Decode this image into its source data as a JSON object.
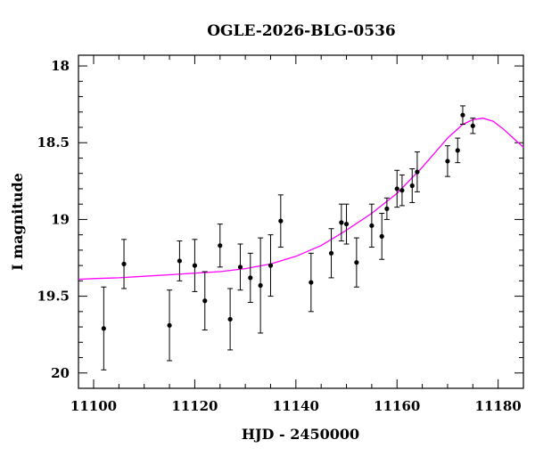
{
  "chart_data": {
    "type": "scatter",
    "title": "OGLE-2026-BLG-0536",
    "xlabel": "HJD - 2450000",
    "ylabel": "I magnitude",
    "xlim": [
      11097,
      11185
    ],
    "ylim": [
      20.1,
      17.93
    ],
    "y_inverted": true,
    "grid": false,
    "x_ticks": [
      11100,
      11120,
      11140,
      11160,
      11180
    ],
    "y_ticks": [
      18,
      18.5,
      19,
      19.5,
      20
    ],
    "x_tick_labels": [
      "11100",
      "11120",
      "11140",
      "11160",
      "11180"
    ],
    "y_tick_labels": [
      "18",
      "18.5",
      "19",
      "19.5",
      "20"
    ],
    "points": [
      {
        "x": 11102,
        "y": 19.71,
        "err": 0.27
      },
      {
        "x": 11106,
        "y": 19.29,
        "err": 0.16
      },
      {
        "x": 11115,
        "y": 19.69,
        "err": 0.23
      },
      {
        "x": 11117,
        "y": 19.27,
        "err": 0.13
      },
      {
        "x": 11120,
        "y": 19.3,
        "err": 0.17
      },
      {
        "x": 11122,
        "y": 19.53,
        "err": 0.19
      },
      {
        "x": 11125,
        "y": 19.17,
        "err": 0.14
      },
      {
        "x": 11127,
        "y": 19.65,
        "err": 0.2
      },
      {
        "x": 11129,
        "y": 19.31,
        "err": 0.15
      },
      {
        "x": 11131,
        "y": 19.38,
        "err": 0.16
      },
      {
        "x": 11133,
        "y": 19.43,
        "err": 0.31
      },
      {
        "x": 11135,
        "y": 19.3,
        "err": 0.2
      },
      {
        "x": 11137,
        "y": 19.01,
        "err": 0.17
      },
      {
        "x": 11143,
        "y": 19.41,
        "err": 0.19
      },
      {
        "x": 11147,
        "y": 19.22,
        "err": 0.16
      },
      {
        "x": 11149,
        "y": 19.02,
        "err": 0.12
      },
      {
        "x": 11150,
        "y": 19.03,
        "err": 0.13
      },
      {
        "x": 11152,
        "y": 19.28,
        "err": 0.16
      },
      {
        "x": 11155,
        "y": 19.04,
        "err": 0.14
      },
      {
        "x": 11157,
        "y": 19.11,
        "err": 0.15
      },
      {
        "x": 11158,
        "y": 18.93,
        "err": 0.07
      },
      {
        "x": 11160,
        "y": 18.8,
        "err": 0.12
      },
      {
        "x": 11161,
        "y": 18.81,
        "err": 0.1
      },
      {
        "x": 11163,
        "y": 18.78,
        "err": 0.11
      },
      {
        "x": 11164,
        "y": 18.69,
        "err": 0.13
      },
      {
        "x": 11170,
        "y": 18.62,
        "err": 0.1
      },
      {
        "x": 11172,
        "y": 18.55,
        "err": 0.08
      },
      {
        "x": 11173,
        "y": 18.32,
        "err": 0.06
      },
      {
        "x": 11175,
        "y": 18.39,
        "err": 0.05
      }
    ],
    "model_curve": {
      "color": "#ff00ff",
      "x": [
        11097,
        11100,
        11105,
        11110,
        11115,
        11120,
        11125,
        11130,
        11135,
        11140,
        11145,
        11150,
        11155,
        11160,
        11165,
        11170,
        11173,
        11175,
        11177,
        11179,
        11181,
        11183,
        11185
      ],
      "y": [
        19.39,
        19.385,
        19.38,
        19.37,
        19.36,
        19.35,
        19.34,
        19.32,
        19.29,
        19.24,
        19.17,
        19.07,
        18.96,
        18.83,
        18.66,
        18.47,
        18.38,
        18.35,
        18.34,
        18.36,
        18.41,
        18.47,
        18.53
      ]
    },
    "point_color": "#000000"
  }
}
